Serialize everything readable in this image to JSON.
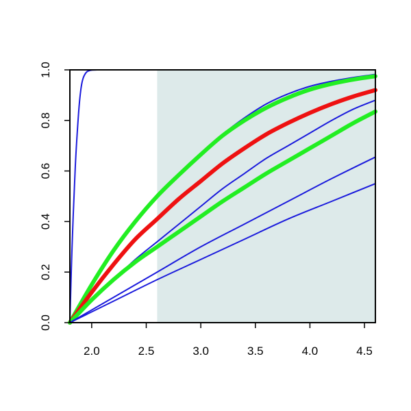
{
  "chart_data": {
    "type": "line",
    "title": "",
    "xlabel": "",
    "ylabel": "",
    "xlim": [
      1.8,
      4.6
    ],
    "ylim": [
      0.0,
      1.0
    ],
    "xticks": [
      "2.0",
      "2.5",
      "3.0",
      "3.5",
      "4.0",
      "4.5"
    ],
    "yticks": [
      "0.0",
      "0.2",
      "0.4",
      "0.6",
      "0.8",
      "1.0"
    ],
    "grid": false,
    "legend": "none",
    "shaded_region": {
      "x_from": 2.6,
      "x_to": 4.6,
      "color": "#ddeaea"
    },
    "colors": {
      "blue": "#1a1adc",
      "green": "#22ee22",
      "red": "#ee1111"
    },
    "series": [
      {
        "color": "blue",
        "width": "thin",
        "x": [
          1.8,
          1.82,
          1.85,
          1.88,
          1.9,
          1.92,
          1.95,
          1.98,
          2.0,
          2.05,
          2.1,
          2.6,
          4.6
        ],
        "y": [
          0.0,
          0.3,
          0.62,
          0.83,
          0.92,
          0.965,
          0.99,
          0.997,
          0.999,
          1.0,
          1.0,
          1.0,
          1.0
        ]
      },
      {
        "color": "blue",
        "width": "thin",
        "x": [
          1.8,
          2.0,
          2.2,
          2.4,
          2.6,
          2.8,
          3.0,
          3.2,
          3.4,
          3.6,
          3.8,
          4.0,
          4.2,
          4.4,
          4.6
        ],
        "y": [
          0.0,
          0.15,
          0.28,
          0.4,
          0.5,
          0.59,
          0.67,
          0.745,
          0.81,
          0.865,
          0.905,
          0.935,
          0.955,
          0.97,
          0.982
        ]
      },
      {
        "color": "green",
        "width": "thick",
        "x": [
          1.8,
          2.0,
          2.2,
          2.4,
          2.6,
          2.8,
          3.0,
          3.2,
          3.4,
          3.6,
          3.8,
          4.0,
          4.2,
          4.4,
          4.6
        ],
        "y": [
          0.0,
          0.15,
          0.285,
          0.4,
          0.5,
          0.585,
          0.665,
          0.74,
          0.8,
          0.85,
          0.89,
          0.922,
          0.945,
          0.962,
          0.975
        ]
      },
      {
        "color": "red",
        "width": "thick",
        "x": [
          1.8,
          2.0,
          2.2,
          2.4,
          2.6,
          2.8,
          3.0,
          3.2,
          3.4,
          3.6,
          3.8,
          4.0,
          4.2,
          4.4,
          4.6
        ],
        "y": [
          0.0,
          0.12,
          0.23,
          0.33,
          0.41,
          0.49,
          0.56,
          0.63,
          0.69,
          0.745,
          0.79,
          0.83,
          0.865,
          0.895,
          0.92
        ]
      },
      {
        "color": "blue",
        "width": "thin",
        "x": [
          1.8,
          2.0,
          2.2,
          2.4,
          2.6,
          2.8,
          3.0,
          3.2,
          3.4,
          3.6,
          3.8,
          4.0,
          4.2,
          4.4,
          4.6
        ],
        "y": [
          0.0,
          0.09,
          0.17,
          0.25,
          0.32,
          0.39,
          0.46,
          0.53,
          0.59,
          0.65,
          0.7,
          0.75,
          0.8,
          0.845,
          0.88
        ]
      },
      {
        "color": "green",
        "width": "thick",
        "x": [
          1.8,
          2.0,
          2.2,
          2.4,
          2.6,
          2.8,
          3.0,
          3.2,
          3.4,
          3.6,
          3.8,
          4.0,
          4.2,
          4.4,
          4.6
        ],
        "y": [
          0.0,
          0.09,
          0.17,
          0.24,
          0.3,
          0.36,
          0.42,
          0.48,
          0.535,
          0.59,
          0.64,
          0.69,
          0.74,
          0.79,
          0.835
        ]
      },
      {
        "color": "blue",
        "width": "thin",
        "x": [
          1.8,
          2.2,
          2.6,
          3.0,
          3.4,
          3.8,
          4.2,
          4.6
        ],
        "y": [
          0.0,
          0.1,
          0.2,
          0.3,
          0.39,
          0.48,
          0.57,
          0.655
        ]
      },
      {
        "color": "blue",
        "width": "thin",
        "x": [
          1.8,
          2.2,
          2.6,
          3.0,
          3.4,
          3.8,
          4.2,
          4.6
        ],
        "y": [
          0.0,
          0.085,
          0.17,
          0.25,
          0.33,
          0.41,
          0.48,
          0.55
        ]
      }
    ]
  }
}
